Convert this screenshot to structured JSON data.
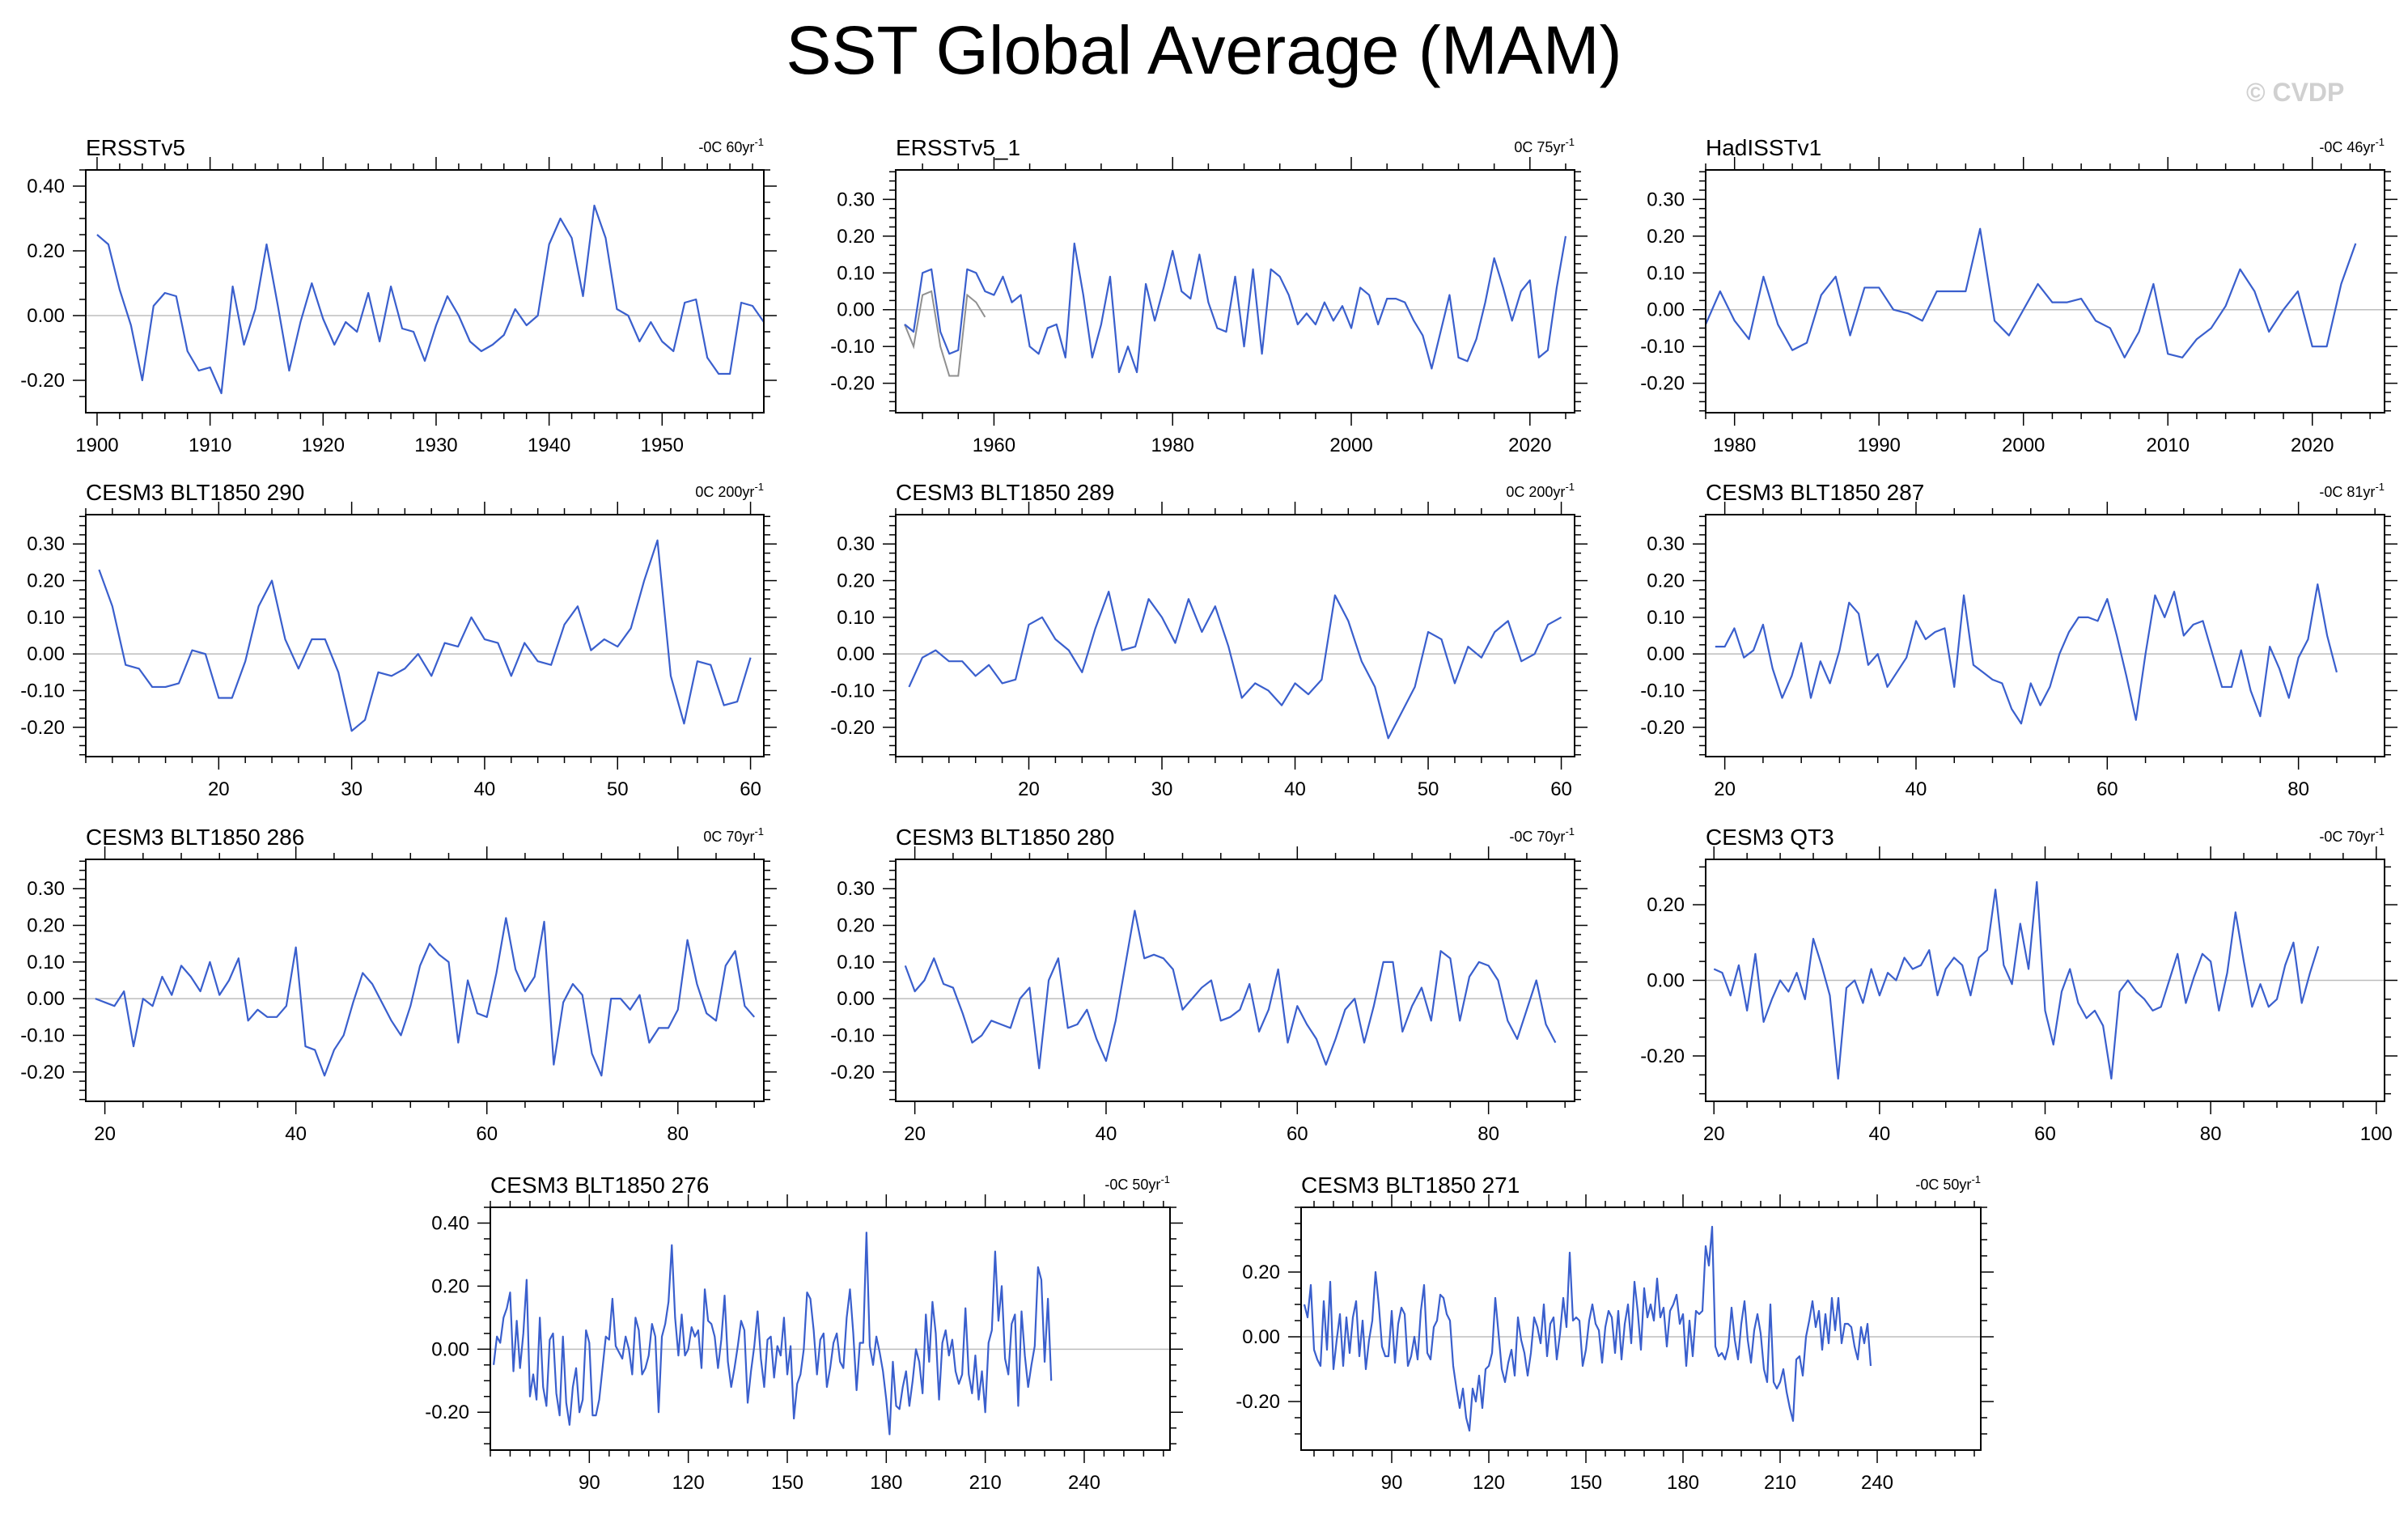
{
  "title": "SST Global Average (MAM)",
  "watermark": "© CVDP",
  "colors": {
    "series": "#3a5fcd",
    "secondary": "#909090",
    "zero": "#bdbdbd",
    "axis": "#000000"
  },
  "chart_data": [
    {
      "type": "line",
      "title": "ERSSTv5",
      "trend_value": "-0C 60yr",
      "trend_sup": "-1",
      "xlim": [
        1899,
        1959
      ],
      "ylim": [
        -0.3,
        0.45
      ],
      "xticks": [
        1900,
        1910,
        1920,
        1930,
        1940,
        1950
      ],
      "yticks": [
        -0.2,
        0,
        0.2,
        0.4
      ],
      "ytick_labels": [
        "-0.20",
        "0.00",
        "0.20",
        "0.40"
      ],
      "x_start": 1900,
      "y": [
        0.25,
        0.22,
        0.08,
        -0.03,
        -0.2,
        0.03,
        0.07,
        0.06,
        -0.11,
        -0.17,
        -0.16,
        -0.24,
        0.09,
        -0.09,
        0.02,
        0.22,
        0.03,
        -0.17,
        -0.02,
        0.1,
        -0.01,
        -0.09,
        -0.02,
        -0.05,
        0.07,
        -0.08,
        0.09,
        -0.04,
        -0.05,
        -0.14,
        -0.03,
        0.06,
        0.0,
        -0.08,
        -0.11,
        -0.09,
        -0.06,
        0.02,
        -0.03,
        0.0,
        0.22,
        0.3,
        0.24,
        0.06,
        0.34,
        0.24,
        0.02,
        0.0,
        -0.08,
        -0.02,
        -0.08,
        -0.11,
        0.04,
        0.05,
        -0.13,
        -0.18,
        -0.18,
        0.04,
        0.03,
        -0.02
      ]
    },
    {
      "type": "line",
      "title": "ERSSTv5_1",
      "trend_value": "0C 75yr",
      "trend_sup": "-1",
      "xlim": [
        1949,
        2025
      ],
      "ylim": [
        -0.28,
        0.38
      ],
      "xticks": [
        1960,
        1980,
        2000,
        2020
      ],
      "yticks": [
        -0.2,
        -0.1,
        0,
        0.1,
        0.2,
        0.3
      ],
      "ytick_labels": [
        "-0.20",
        "-0.10",
        "0.00",
        "0.10",
        "0.20",
        "0.30"
      ],
      "x_start": 1950,
      "y": [
        -0.04,
        -0.06,
        0.1,
        0.11,
        -0.06,
        -0.12,
        -0.11,
        0.11,
        0.1,
        0.05,
        0.04,
        0.09,
        0.02,
        0.04,
        -0.1,
        -0.12,
        -0.05,
        -0.04,
        -0.13,
        0.18,
        0.04,
        -0.13,
        -0.04,
        0.09,
        -0.17,
        -0.1,
        -0.17,
        0.07,
        -0.03,
        0.06,
        0.16,
        0.05,
        0.03,
        0.15,
        0.02,
        -0.05,
        -0.06,
        0.09,
        -0.1,
        0.11,
        -0.12,
        0.11,
        0.09,
        0.04,
        -0.04,
        -0.01,
        -0.04,
        0.02,
        -0.03,
        0.01,
        -0.05,
        0.06,
        0.04,
        -0.04,
        0.03,
        0.03,
        0.02,
        -0.03,
        -0.07,
        -0.16,
        -0.06,
        0.04,
        -0.13,
        -0.14,
        -0.08,
        0.02,
        0.14,
        0.06,
        -0.03,
        0.05,
        0.08,
        -0.13,
        -0.11,
        0.06,
        0.2
      ],
      "secondary": {
        "x_start": 1950,
        "y": [
          -0.04,
          -0.1,
          0.04,
          0.05,
          -0.1,
          -0.18,
          -0.18,
          0.04,
          0.02,
          -0.02
        ]
      }
    },
    {
      "type": "line",
      "title": "HadISSTv1",
      "trend_value": "-0C 46yr",
      "trend_sup": "-1",
      "xlim": [
        1978,
        2025
      ],
      "ylim": [
        -0.28,
        0.38
      ],
      "xticks": [
        1980,
        1990,
        2000,
        2010,
        2020
      ],
      "yticks": [
        -0.2,
        -0.1,
        0,
        0.1,
        0.2,
        0.3
      ],
      "ytick_labels": [
        "-0.20",
        "-0.10",
        "0.00",
        "0.10",
        "0.20",
        "0.30"
      ],
      "x_start": 1978,
      "y": [
        -0.04,
        0.05,
        -0.03,
        -0.08,
        0.09,
        -0.04,
        -0.11,
        -0.09,
        0.04,
        0.09,
        -0.07,
        0.06,
        0.06,
        0.0,
        -0.01,
        -0.03,
        0.05,
        0.05,
        0.05,
        0.22,
        -0.03,
        -0.07,
        0.0,
        0.07,
        0.02,
        0.02,
        0.03,
        -0.03,
        -0.05,
        -0.13,
        -0.06,
        0.07,
        -0.12,
        -0.13,
        -0.08,
        -0.05,
        0.01,
        0.11,
        0.05,
        -0.06,
        0.0,
        0.05,
        -0.1,
        -0.1,
        0.07,
        0.18
      ]
    },
    {
      "type": "line",
      "title": "CESM3 BLT1850 290",
      "trend_value": "0C 200yr",
      "trend_sup": "-1",
      "xlim": [
        10,
        61
      ],
      "ylim": [
        -0.28,
        0.38
      ],
      "xticks": [
        20,
        30,
        40,
        50,
        60
      ],
      "yticks": [
        -0.2,
        -0.1,
        0,
        0.1,
        0.2,
        0.3
      ],
      "ytick_labels": [
        "-0.20",
        "-0.10",
        "0.00",
        "0.10",
        "0.20",
        "0.30"
      ],
      "x_start": 11,
      "y": [
        0.23,
        0.13,
        -0.03,
        -0.04,
        -0.09,
        -0.09,
        -0.08,
        0.01,
        0.0,
        -0.12,
        -0.12,
        -0.02,
        0.13,
        0.2,
        0.04,
        -0.04,
        0.04,
        0.04,
        -0.05,
        -0.21,
        -0.18,
        -0.05,
        -0.06,
        -0.04,
        0.0,
        -0.06,
        0.03,
        0.02,
        0.1,
        0.04,
        0.03,
        -0.06,
        0.03,
        -0.02,
        -0.03,
        0.08,
        0.13,
        0.01,
        0.04,
        0.02,
        0.07,
        0.2,
        0.31,
        -0.06,
        -0.19,
        -0.02,
        -0.03,
        -0.14,
        -0.13,
        -0.01
      ]
    },
    {
      "type": "line",
      "title": "CESM3 BLT1850 289",
      "trend_value": "0C 200yr",
      "trend_sup": "-1",
      "xlim": [
        10,
        61
      ],
      "ylim": [
        -0.28,
        0.38
      ],
      "xticks": [
        20,
        30,
        40,
        50,
        60
      ],
      "yticks": [
        -0.2,
        -0.1,
        0,
        0.1,
        0.2,
        0.3
      ],
      "ytick_labels": [
        "-0.20",
        "-0.10",
        "0.00",
        "0.10",
        "0.20",
        "0.30"
      ],
      "x_start": 11,
      "y": [
        -0.09,
        -0.01,
        0.01,
        -0.02,
        -0.02,
        -0.06,
        -0.03,
        -0.08,
        -0.07,
        0.08,
        0.1,
        0.04,
        0.01,
        -0.05,
        0.07,
        0.17,
        0.01,
        0.02,
        0.15,
        0.1,
        0.03,
        0.15,
        0.06,
        0.13,
        0.02,
        -0.12,
        -0.08,
        -0.1,
        -0.14,
        -0.08,
        -0.11,
        -0.07,
        0.16,
        0.09,
        -0.02,
        -0.09,
        -0.23,
        -0.16,
        -0.09,
        0.06,
        0.04,
        -0.08,
        0.02,
        -0.01,
        0.06,
        0.09,
        -0.02,
        0.0,
        0.08,
        0.1
      ]
    },
    {
      "type": "line",
      "title": "CESM3 BLT1850 287",
      "trend_value": "-0C 81yr",
      "trend_sup": "-1",
      "xlim": [
        18,
        89
      ],
      "ylim": [
        -0.28,
        0.38
      ],
      "xticks": [
        20,
        40,
        60,
        80
      ],
      "yticks": [
        -0.2,
        -0.1,
        0,
        0.1,
        0.2,
        0.3
      ],
      "ytick_labels": [
        "-0.20",
        "-0.10",
        "0.00",
        "0.10",
        "0.20",
        "0.30"
      ],
      "x_start": 19,
      "y": [
        0.02,
        0.02,
        0.07,
        -0.01,
        0.01,
        0.08,
        -0.04,
        -0.12,
        -0.06,
        0.03,
        -0.12,
        -0.02,
        -0.08,
        0.01,
        0.14,
        0.11,
        -0.03,
        0.0,
        -0.09,
        -0.05,
        -0.01,
        0.09,
        0.04,
        0.06,
        0.07,
        -0.09,
        0.16,
        -0.03,
        -0.05,
        -0.07,
        -0.08,
        -0.15,
        -0.19,
        -0.08,
        -0.14,
        -0.09,
        0.0,
        0.06,
        0.1,
        0.1,
        0.09,
        0.15,
        0.05,
        -0.06,
        -0.18,
        0.0,
        0.16,
        0.1,
        0.17,
        0.05,
        0.08,
        0.09,
        0.0,
        -0.09,
        -0.09,
        0.01,
        -0.1,
        -0.17,
        0.02,
        -0.04,
        -0.12,
        -0.01,
        0.04,
        0.19,
        0.05,
        -0.05
      ]
    },
    {
      "type": "line",
      "title": "CESM3 BLT1850 286",
      "trend_value": "0C 70yr",
      "trend_sup": "-1",
      "xlim": [
        18,
        89
      ],
      "ylim": [
        -0.28,
        0.38
      ],
      "xticks": [
        20,
        40,
        60,
        80
      ],
      "yticks": [
        -0.2,
        -0.1,
        0,
        0.1,
        0.2,
        0.3
      ],
      "ytick_labels": [
        "-0.20",
        "-0.10",
        "0.00",
        "0.10",
        "0.20",
        "0.30"
      ],
      "x_start": 19,
      "y": [
        0.0,
        -0.01,
        -0.02,
        0.02,
        -0.13,
        0.0,
        -0.02,
        0.06,
        0.01,
        0.09,
        0.06,
        0.02,
        0.1,
        0.01,
        0.05,
        0.11,
        -0.06,
        -0.03,
        -0.05,
        -0.05,
        -0.02,
        0.14,
        -0.13,
        -0.14,
        -0.21,
        -0.14,
        -0.1,
        -0.01,
        0.07,
        0.04,
        -0.01,
        -0.06,
        -0.1,
        -0.02,
        0.09,
        0.15,
        0.12,
        0.1,
        -0.12,
        0.05,
        -0.04,
        -0.05,
        0.07,
        0.22,
        0.08,
        0.02,
        0.06,
        0.21,
        -0.18,
        -0.01,
        0.04,
        0.01,
        -0.15,
        -0.21,
        0.0,
        0.0,
        -0.03,
        0.01,
        -0.12,
        -0.08,
        -0.08,
        -0.03,
        0.16,
        0.04,
        -0.04,
        -0.06,
        0.09,
        0.13,
        -0.02,
        -0.05
      ]
    },
    {
      "type": "line",
      "title": "CESM3 BLT1850 280",
      "trend_value": "-0C 70yr",
      "trend_sup": "-1",
      "xlim": [
        18,
        89
      ],
      "ylim": [
        -0.28,
        0.38
      ],
      "xticks": [
        20,
        40,
        60,
        80
      ],
      "yticks": [
        -0.2,
        -0.1,
        0,
        0.1,
        0.2,
        0.3
      ],
      "ytick_labels": [
        "-0.20",
        "-0.10",
        "0.00",
        "0.10",
        "0.20",
        "0.30"
      ],
      "x_start": 19,
      "y": [
        0.09,
        0.02,
        0.05,
        0.11,
        0.04,
        0.03,
        -0.04,
        -0.12,
        -0.1,
        -0.06,
        -0.07,
        -0.08,
        0.0,
        0.03,
        -0.19,
        0.05,
        0.11,
        -0.08,
        -0.07,
        -0.03,
        -0.11,
        -0.17,
        -0.06,
        0.09,
        0.24,
        0.11,
        0.12,
        0.11,
        0.08,
        -0.03,
        0.0,
        0.03,
        0.05,
        -0.06,
        -0.05,
        -0.03,
        0.04,
        -0.09,
        -0.03,
        0.08,
        -0.12,
        -0.02,
        -0.07,
        -0.11,
        -0.18,
        -0.11,
        -0.03,
        0.0,
        -0.12,
        -0.02,
        0.1,
        0.1,
        -0.09,
        -0.02,
        0.03,
        -0.06,
        0.13,
        0.11,
        -0.06,
        0.06,
        0.1,
        0.09,
        0.05,
        -0.06,
        -0.11,
        -0.03,
        0.05,
        -0.07,
        -0.12
      ]
    },
    {
      "type": "line",
      "title": "CESM3 QT3",
      "trend_value": "-0C 70yr",
      "trend_sup": "-1",
      "xlim": [
        19,
        101
      ],
      "ylim": [
        -0.32,
        0.32
      ],
      "xticks": [
        20,
        40,
        60,
        80,
        100
      ],
      "yticks": [
        -0.2,
        0,
        0.2
      ],
      "ytick_labels": [
        "-0.20",
        "0.00",
        "0.20"
      ],
      "x_start": 20,
      "y": [
        0.03,
        0.02,
        -0.04,
        0.04,
        -0.08,
        0.07,
        -0.11,
        -0.05,
        0.0,
        -0.03,
        0.02,
        -0.05,
        0.11,
        0.04,
        -0.04,
        -0.26,
        -0.02,
        0.0,
        -0.06,
        0.03,
        -0.04,
        0.02,
        0.0,
        0.06,
        0.03,
        0.04,
        0.08,
        -0.04,
        0.03,
        0.06,
        0.04,
        -0.04,
        0.06,
        0.08,
        0.24,
        0.04,
        -0.01,
        0.15,
        0.03,
        0.26,
        -0.08,
        -0.17,
        -0.03,
        0.03,
        -0.06,
        -0.1,
        -0.08,
        -0.12,
        -0.26,
        -0.03,
        0.0,
        -0.03,
        -0.05,
        -0.08,
        -0.07,
        0.0,
        0.07,
        -0.06,
        0.01,
        0.07,
        0.05,
        -0.08,
        0.02,
        0.18,
        0.05,
        -0.07,
        -0.01,
        -0.07,
        -0.05,
        0.04,
        0.1,
        -0.06,
        0.02,
        0.09
      ]
    },
    {
      "type": "line",
      "title": "CESM3 BLT1850 276",
      "trend_value": "-0C 50yr",
      "trend_sup": "-1",
      "xlim": [
        60,
        266
      ],
      "ylim": [
        -0.32,
        0.45
      ],
      "xticks": [
        90,
        120,
        150,
        180,
        210,
        240
      ],
      "yticks": [
        -0.2,
        0,
        0.2,
        0.4
      ],
      "ytick_labels": [
        "-0.20",
        "0.00",
        "0.20",
        "0.40"
      ],
      "x_start": 61,
      "y": [
        -0.05,
        0.04,
        0.02,
        0.1,
        0.13,
        0.18,
        -0.07,
        0.09,
        -0.06,
        0.05,
        0.22,
        -0.15,
        -0.08,
        -0.16,
        0.1,
        -0.12,
        -0.18,
        0.03,
        0.05,
        -0.14,
        -0.21,
        0.04,
        -0.17,
        -0.24,
        -0.12,
        -0.06,
        -0.2,
        -0.16,
        0.06,
        0.02,
        -0.21,
        -0.21,
        -0.16,
        -0.06,
        0.04,
        0.03,
        0.16,
        0.01,
        -0.01,
        -0.03,
        0.04,
        0.0,
        -0.08,
        0.1,
        0.06,
        -0.08,
        -0.06,
        -0.02,
        0.08,
        0.04,
        -0.2,
        0.04,
        0.08,
        0.15,
        0.33,
        0.1,
        -0.02,
        0.11,
        -0.02,
        0.0,
        0.07,
        0.04,
        0.06,
        -0.06,
        0.19,
        0.09,
        0.08,
        0.04,
        -0.06,
        0.03,
        0.17,
        -0.04,
        -0.12,
        -0.06,
        0.01,
        0.09,
        0.06,
        -0.17,
        -0.07,
        0.01,
        0.12,
        -0.03,
        -0.12,
        0.03,
        0.04,
        -0.09,
        0.01,
        -0.02,
        0.1,
        -0.08,
        0.01,
        -0.22,
        -0.11,
        -0.08,
        0.0,
        0.18,
        0.16,
        0.06,
        -0.08,
        0.03,
        0.05,
        -0.12,
        -0.06,
        0.02,
        0.05,
        -0.04,
        -0.06,
        0.1,
        0.19,
        0.05,
        -0.13,
        0.02,
        0.02,
        0.37,
        0.01,
        -0.05,
        0.04,
        -0.01,
        -0.07,
        -0.16,
        -0.27,
        -0.04,
        -0.18,
        -0.19,
        -0.12,
        -0.07,
        -0.18,
        -0.1,
        0.0,
        -0.04,
        -0.14,
        0.11,
        -0.04,
        0.15,
        0.05,
        -0.16,
        0.02,
        0.06,
        -0.02,
        0.03,
        -0.07,
        -0.11,
        -0.08,
        0.13,
        -0.08,
        -0.14,
        -0.02,
        -0.16,
        -0.07,
        -0.2,
        0.02,
        0.06,
        0.31,
        0.09,
        0.2,
        -0.03,
        -0.08,
        0.08,
        0.11,
        -0.18,
        0.12,
        -0.02,
        -0.12,
        -0.05,
        0.01,
        0.26,
        0.22,
        -0.04,
        0.16,
        -0.1
      ]
    },
    {
      "type": "line",
      "title": "CESM3 BLT1850 271",
      "trend_value": "-0C 50yr",
      "trend_sup": "-1",
      "xlim": [
        62,
        272
      ],
      "ylim": [
        -0.35,
        0.4
      ],
      "xticks": [
        90,
        120,
        150,
        180,
        210,
        240
      ],
      "yticks": [
        -0.2,
        0,
        0.2
      ],
      "ytick_labels": [
        "-0.20",
        "0.00",
        "0.20"
      ],
      "x_start": 63,
      "y": [
        0.1,
        0.06,
        0.16,
        -0.04,
        -0.07,
        -0.09,
        0.11,
        -0.04,
        0.17,
        -0.1,
        -0.01,
        0.07,
        -0.09,
        0.06,
        -0.05,
        0.06,
        0.11,
        -0.06,
        0.05,
        -0.1,
        -0.01,
        0.05,
        0.2,
        0.1,
        -0.03,
        -0.06,
        -0.06,
        0.08,
        -0.08,
        0.04,
        0.09,
        0.07,
        -0.09,
        -0.06,
        0.0,
        -0.07,
        0.08,
        0.16,
        -0.05,
        -0.07,
        0.03,
        0.05,
        0.13,
        0.12,
        0.07,
        0.05,
        -0.09,
        -0.16,
        -0.22,
        -0.16,
        -0.25,
        -0.29,
        -0.16,
        -0.2,
        -0.12,
        -0.22,
        -0.1,
        -0.09,
        -0.05,
        0.12,
        0.01,
        -0.1,
        -0.14,
        -0.08,
        -0.04,
        -0.12,
        0.06,
        -0.01,
        -0.05,
        -0.12,
        -0.05,
        0.06,
        0.03,
        -0.02,
        0.1,
        -0.06,
        0.04,
        0.06,
        -0.07,
        0.01,
        0.12,
        0.03,
        0.26,
        0.05,
        0.06,
        0.05,
        -0.09,
        -0.04,
        0.05,
        0.1,
        0.04,
        0.02,
        -0.08,
        0.03,
        0.08,
        0.06,
        -0.05,
        0.08,
        -0.07,
        0.04,
        0.1,
        -0.02,
        0.17,
        0.08,
        -0.04,
        0.15,
        0.06,
        0.1,
        0.05,
        0.18,
        0.06,
        0.09,
        -0.03,
        0.08,
        0.1,
        0.13,
        0.04,
        0.07,
        -0.09,
        0.05,
        -0.06,
        0.08,
        0.07,
        0.08,
        0.28,
        0.22,
        0.34,
        -0.03,
        -0.06,
        -0.05,
        -0.07,
        -0.03,
        0.09,
        -0.01,
        -0.07,
        0.04,
        0.11,
        -0.01,
        -0.08,
        0.02,
        0.07,
        0.01,
        -0.1,
        -0.14,
        0.1,
        -0.14,
        -0.16,
        -0.14,
        -0.1,
        -0.17,
        -0.22,
        -0.26,
        -0.07,
        -0.06,
        -0.12,
        0.0,
        0.05,
        0.11,
        0.03,
        0.08,
        -0.04,
        0.07,
        -0.02,
        0.12,
        0.02,
        0.12,
        -0.02,
        0.04,
        0.04,
        0.03,
        -0.03,
        -0.07,
        0.03,
        -0.02,
        0.04,
        -0.09
      ]
    }
  ]
}
